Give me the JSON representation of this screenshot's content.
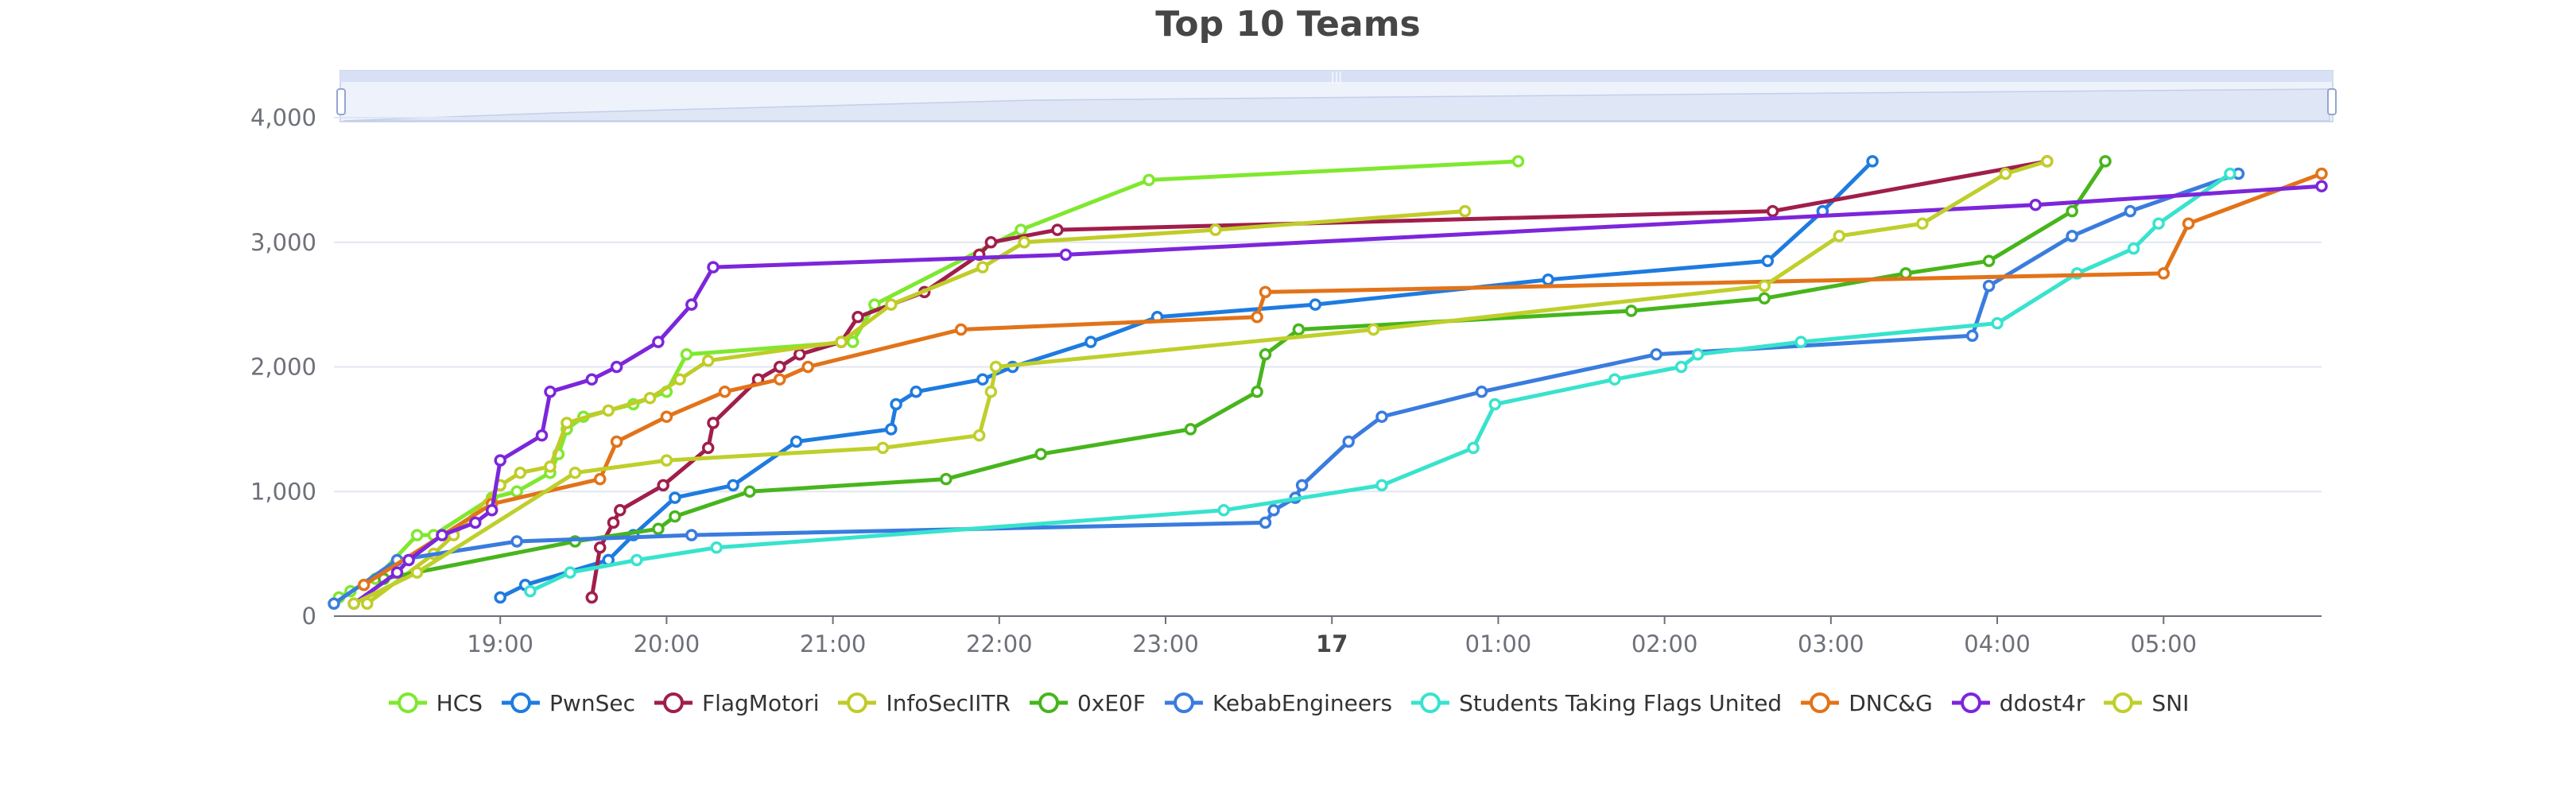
{
  "chart_data": {
    "type": "line",
    "title": "Top 10 Teams",
    "xlabel": "",
    "ylabel": "",
    "ylim": [
      0,
      4000
    ],
    "y_ticks": [
      "0",
      "1,000",
      "2,000",
      "3,000",
      "4,000"
    ],
    "x_ticks": [
      {
        "t": 19.0,
        "label": "19:00"
      },
      {
        "t": 20.0,
        "label": "20:00"
      },
      {
        "t": 21.0,
        "label": "21:00"
      },
      {
        "t": 22.0,
        "label": "22:00"
      },
      {
        "t": 23.0,
        "label": "23:00"
      },
      {
        "t": 24.0,
        "label": "17"
      },
      {
        "t": 25.0,
        "label": "01:00"
      },
      {
        "t": 26.0,
        "label": "02:00"
      },
      {
        "t": 27.0,
        "label": "03:00"
      },
      {
        "t": 28.0,
        "label": "04:00"
      },
      {
        "t": 29.0,
        "label": "05:00"
      }
    ],
    "xlim": [
      18.0,
      29.95
    ],
    "grid": true,
    "legend_position": "bottom",
    "data_zoom_slider": true,
    "series": [
      {
        "name": "HCS",
        "color": "#7FE82F",
        "points": [
          [
            18.03,
            150
          ],
          [
            18.1,
            200
          ],
          [
            18.25,
            300
          ],
          [
            18.5,
            650
          ],
          [
            18.6,
            650
          ],
          [
            18.95,
            950
          ],
          [
            19.1,
            1000
          ],
          [
            19.3,
            1150
          ],
          [
            19.35,
            1300
          ],
          [
            19.4,
            1500
          ],
          [
            19.5,
            1600
          ],
          [
            19.8,
            1700
          ],
          [
            20.0,
            1800
          ],
          [
            20.12,
            2100
          ],
          [
            21.12,
            2200
          ],
          [
            21.25,
            2500
          ],
          [
            22.13,
            3100
          ],
          [
            22.9,
            3500
          ],
          [
            25.12,
            3650
          ]
        ]
      },
      {
        "name": "PwnSec",
        "color": "#1E7BE0",
        "points": [
          [
            19.0,
            150
          ],
          [
            19.15,
            250
          ],
          [
            19.65,
            450
          ],
          [
            19.8,
            650
          ],
          [
            20.05,
            950
          ],
          [
            20.4,
            1050
          ],
          [
            20.78,
            1400
          ],
          [
            21.35,
            1500
          ],
          [
            21.38,
            1700
          ],
          [
            21.5,
            1800
          ],
          [
            21.9,
            1900
          ],
          [
            22.08,
            2000
          ],
          [
            22.55,
            2200
          ],
          [
            22.95,
            2400
          ],
          [
            23.9,
            2500
          ],
          [
            25.3,
            2700
          ],
          [
            26.62,
            2850
          ],
          [
            26.95,
            3250
          ],
          [
            27.25,
            3650
          ]
        ]
      },
      {
        "name": "FlagMotori",
        "color": "#A01E4B",
        "points": [
          [
            19.55,
            150
          ],
          [
            19.6,
            550
          ],
          [
            19.68,
            750
          ],
          [
            19.72,
            850
          ],
          [
            19.98,
            1050
          ],
          [
            20.25,
            1350
          ],
          [
            20.28,
            1550
          ],
          [
            20.55,
            1900
          ],
          [
            20.68,
            2000
          ],
          [
            20.8,
            2100
          ],
          [
            21.05,
            2200
          ],
          [
            21.15,
            2400
          ],
          [
            21.55,
            2600
          ],
          [
            21.88,
            2900
          ],
          [
            21.95,
            3000
          ],
          [
            22.35,
            3100
          ],
          [
            26.65,
            3250
          ],
          [
            28.3,
            3650
          ]
        ]
      },
      {
        "name": "InfoSecIITR",
        "color": "#C0CC28",
        "points": [
          [
            18.2,
            100
          ],
          [
            18.6,
            500
          ],
          [
            18.72,
            650
          ],
          [
            19.0,
            1050
          ],
          [
            19.12,
            1150
          ],
          [
            19.3,
            1200
          ],
          [
            19.4,
            1550
          ],
          [
            19.65,
            1650
          ],
          [
            19.9,
            1750
          ],
          [
            20.08,
            1900
          ],
          [
            20.25,
            2050
          ],
          [
            21.05,
            2200
          ],
          [
            21.35,
            2500
          ],
          [
            21.9,
            2800
          ],
          [
            22.15,
            3000
          ],
          [
            23.3,
            3100
          ],
          [
            24.8,
            3250
          ]
        ]
      },
      {
        "name": "0xE0F",
        "color": "#47B51C",
        "points": [
          [
            18.3,
            300
          ],
          [
            19.45,
            600
          ],
          [
            19.95,
            700
          ],
          [
            20.05,
            800
          ],
          [
            20.5,
            1000
          ],
          [
            21.68,
            1100
          ],
          [
            22.25,
            1300
          ],
          [
            23.15,
            1500
          ],
          [
            23.55,
            1800
          ],
          [
            23.6,
            2100
          ],
          [
            23.8,
            2300
          ],
          [
            25.8,
            2450
          ],
          [
            26.6,
            2550
          ],
          [
            27.45,
            2750
          ],
          [
            27.95,
            2850
          ],
          [
            28.45,
            3250
          ],
          [
            28.65,
            3650
          ]
        ]
      },
      {
        "name": "KebabEngineers",
        "color": "#3A7CDE",
        "points": [
          [
            18.0,
            100
          ],
          [
            18.38,
            450
          ],
          [
            19.1,
            600
          ],
          [
            20.15,
            650
          ],
          [
            23.6,
            750
          ],
          [
            23.65,
            850
          ],
          [
            23.78,
            950
          ],
          [
            23.82,
            1050
          ],
          [
            24.1,
            1400
          ],
          [
            24.3,
            1600
          ],
          [
            24.9,
            1800
          ],
          [
            25.95,
            2100
          ],
          [
            27.85,
            2250
          ],
          [
            27.95,
            2650
          ],
          [
            28.45,
            3050
          ],
          [
            28.8,
            3250
          ],
          [
            29.45,
            3550
          ]
        ]
      },
      {
        "name": "Students Taking Flags United",
        "color": "#38E3CD",
        "points": [
          [
            19.18,
            200
          ],
          [
            19.42,
            350
          ],
          [
            19.82,
            450
          ],
          [
            20.3,
            550
          ],
          [
            23.35,
            850
          ],
          [
            24.3,
            1050
          ],
          [
            24.85,
            1350
          ],
          [
            24.98,
            1700
          ],
          [
            25.7,
            1900
          ],
          [
            26.1,
            2000
          ],
          [
            26.2,
            2100
          ],
          [
            26.82,
            2200
          ],
          [
            28.0,
            2350
          ],
          [
            28.48,
            2750
          ],
          [
            28.82,
            2950
          ],
          [
            28.97,
            3150
          ],
          [
            29.4,
            3550
          ]
        ]
      },
      {
        "name": "DNC&G",
        "color": "#E27319",
        "points": [
          [
            18.18,
            250
          ],
          [
            18.95,
            900
          ],
          [
            19.6,
            1100
          ],
          [
            19.7,
            1400
          ],
          [
            20.0,
            1600
          ],
          [
            20.35,
            1800
          ],
          [
            20.68,
            1900
          ],
          [
            20.85,
            2000
          ],
          [
            21.77,
            2300
          ],
          [
            23.55,
            2400
          ],
          [
            23.6,
            2600
          ],
          [
            29.0,
            2750
          ],
          [
            29.15,
            3150
          ],
          [
            29.95,
            3550
          ]
        ]
      },
      {
        "name": "ddost4r",
        "color": "#7C26DB",
        "points": [
          [
            18.12,
            100
          ],
          [
            18.38,
            350
          ],
          [
            18.45,
            450
          ],
          [
            18.65,
            650
          ],
          [
            18.85,
            750
          ],
          [
            18.95,
            850
          ],
          [
            19.0,
            1250
          ],
          [
            19.25,
            1450
          ],
          [
            19.3,
            1800
          ],
          [
            19.55,
            1900
          ],
          [
            19.7,
            2000
          ],
          [
            19.95,
            2200
          ],
          [
            20.15,
            2500
          ],
          [
            20.28,
            2800
          ],
          [
            22.4,
            2900
          ],
          [
            28.23,
            3300
          ],
          [
            29.95,
            3450
          ]
        ]
      },
      {
        "name": "SNI",
        "color": "#BFCF2B",
        "points": [
          [
            18.12,
            100
          ],
          [
            18.5,
            350
          ],
          [
            19.45,
            1150
          ],
          [
            20.0,
            1250
          ],
          [
            21.3,
            1350
          ],
          [
            21.88,
            1450
          ],
          [
            21.95,
            1800
          ],
          [
            21.98,
            2000
          ],
          [
            24.25,
            2300
          ],
          [
            26.6,
            2650
          ],
          [
            27.05,
            3050
          ],
          [
            27.55,
            3150
          ],
          [
            28.05,
            3550
          ],
          [
            28.3,
            3650
          ]
        ]
      }
    ]
  }
}
